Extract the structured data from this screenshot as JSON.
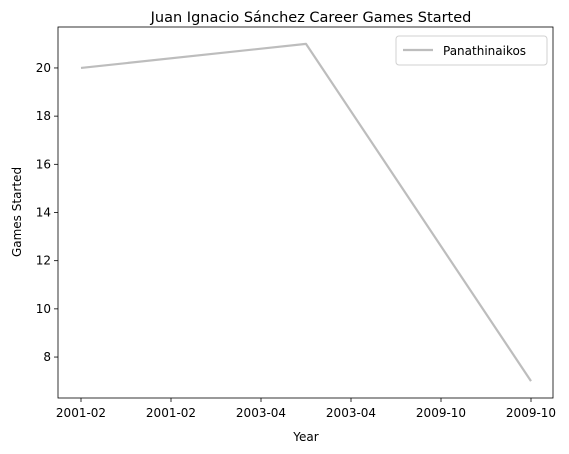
{
  "chart_data": {
    "type": "line",
    "title": "Juan Ignacio Sánchez Career Games Started",
    "xlabel": "Year",
    "ylabel": "Games Started",
    "x": [
      "2001-02",
      "2003-04",
      "2009-10"
    ],
    "x_tick_labels": [
      "2001-02",
      "2001-02",
      "2003-04",
      "2003-04",
      "2009-10",
      "2009-10"
    ],
    "y_ticks": [
      8,
      10,
      12,
      14,
      16,
      18,
      20
    ],
    "ylim": [
      6.3,
      21.7
    ],
    "series": [
      {
        "name": "Panathinaikos",
        "values": [
          20,
          21,
          7
        ],
        "color": "#bdbdbd"
      }
    ],
    "legend": "top-right",
    "grid": false
  }
}
